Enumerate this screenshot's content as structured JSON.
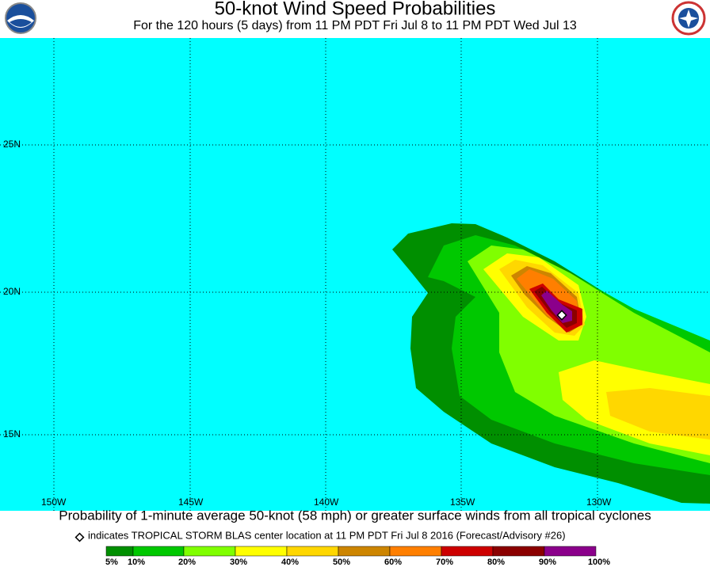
{
  "header": {
    "title": "50-knot Wind Speed Probabilities",
    "subtitle": "For the 120 hours (5 days) from 11 PM PDT Fri Jul 8 to 11 PM PDT Wed Jul 13"
  },
  "map": {
    "lat_labels": [
      "25N",
      "20N",
      "15N"
    ],
    "lon_labels": [
      "150W",
      "145W",
      "140W",
      "135W",
      "130W"
    ]
  },
  "footer": {
    "caption": "Probability of 1-minute average 50-knot (58 mph) or greater surface winds from all tropical cyclones",
    "legend_note": "indicates TROPICAL STORM BLAS center location at 11 PM PDT Fri Jul 8 2016 (Forecast/Advisory #26)",
    "scale_labels": [
      "5%",
      "10%",
      "20%",
      "30%",
      "40%",
      "50%",
      "60%",
      "70%",
      "80%",
      "90%",
      "100%"
    ]
  }
}
